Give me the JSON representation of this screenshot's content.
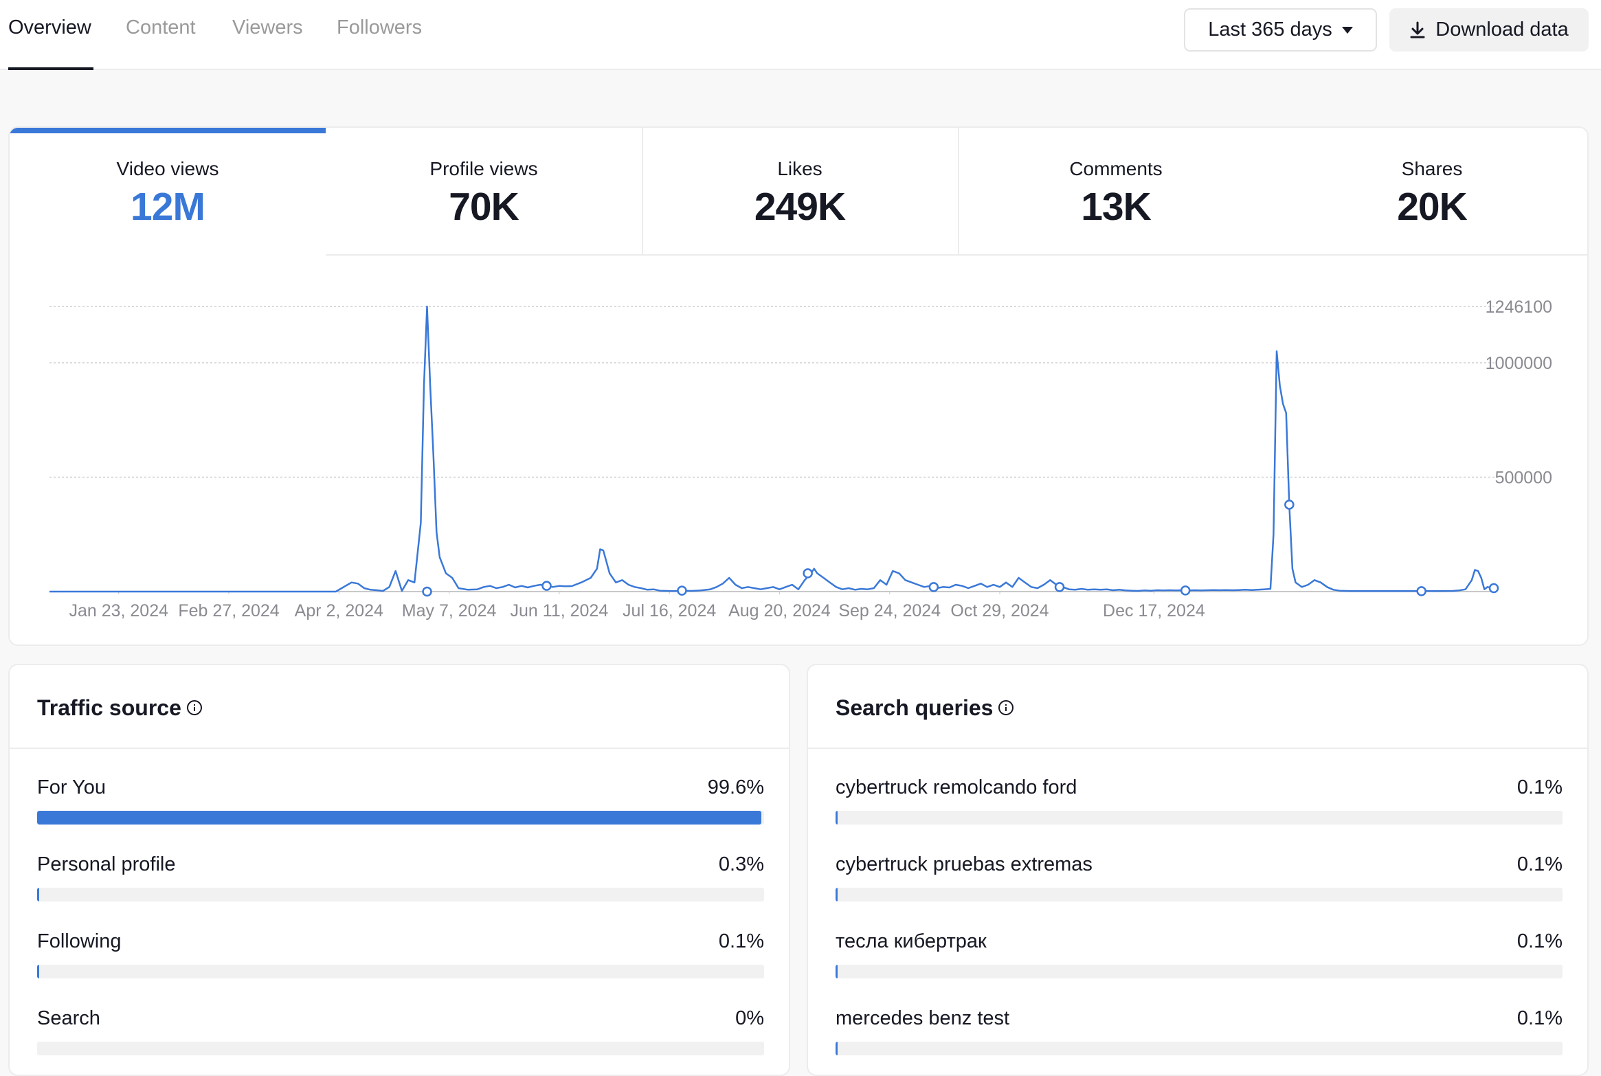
{
  "tabs": [
    {
      "label": "Overview",
      "active": true
    },
    {
      "label": "Content",
      "active": false
    },
    {
      "label": "Viewers",
      "active": false
    },
    {
      "label": "Followers",
      "active": false
    }
  ],
  "toolbar": {
    "range_label": "Last 365 days",
    "range_icon": "caret-down-icon",
    "download_label": "Download data",
    "download_icon": "download-icon"
  },
  "metrics": [
    {
      "label": "Video views",
      "value": "12M",
      "selected": true
    },
    {
      "label": "Profile views",
      "value": "70K",
      "selected": false
    },
    {
      "label": "Likes",
      "value": "249K",
      "selected": false
    },
    {
      "label": "Comments",
      "value": "13K",
      "selected": false
    },
    {
      "label": "Shares",
      "value": "20K",
      "selected": false
    }
  ],
  "colors": {
    "accent": "#3a78d8",
    "track": "#f1f1f2",
    "border": "#ececec"
  },
  "chart_data": {
    "type": "line",
    "series": [
      {
        "values": [
          [
            0,
            0
          ],
          [
            45,
            0
          ],
          [
            69,
            0
          ],
          [
            91,
            0
          ],
          [
            96,
            40000
          ],
          [
            98,
            35000
          ],
          [
            100,
            15000
          ],
          [
            102,
            8000
          ],
          [
            104,
            6000
          ],
          [
            106,
            3000
          ],
          [
            108,
            20000
          ],
          [
            110,
            90000
          ],
          [
            112,
            3000
          ],
          [
            114,
            50000
          ],
          [
            116,
            40000
          ],
          [
            118,
            300000
          ],
          [
            119,
            900000
          ],
          [
            120,
            1246100
          ],
          [
            121,
            900000
          ],
          [
            122,
            600000
          ],
          [
            123,
            260000
          ],
          [
            124,
            150000
          ],
          [
            126,
            80000
          ],
          [
            128,
            60000
          ],
          [
            130,
            15000
          ],
          [
            133,
            8000
          ],
          [
            136,
            10000
          ],
          [
            138,
            20000
          ],
          [
            140,
            25000
          ],
          [
            142,
            15000
          ],
          [
            144,
            20000
          ],
          [
            146,
            30000
          ],
          [
            148,
            18000
          ],
          [
            150,
            25000
          ],
          [
            152,
            18000
          ],
          [
            154,
            25000
          ],
          [
            156,
            30000
          ],
          [
            158,
            25000
          ],
          [
            160,
            20000
          ],
          [
            162,
            25000
          ],
          [
            164,
            23000
          ],
          [
            166,
            24000
          ],
          [
            169,
            40000
          ],
          [
            172,
            60000
          ],
          [
            174,
            100000
          ],
          [
            175,
            185000
          ],
          [
            176,
            180000
          ],
          [
            177,
            130000
          ],
          [
            178,
            80000
          ],
          [
            180,
            40000
          ],
          [
            182,
            50000
          ],
          [
            184,
            30000
          ],
          [
            186,
            20000
          ],
          [
            188,
            15000
          ],
          [
            190,
            8000
          ],
          [
            192,
            10000
          ],
          [
            194,
            4000
          ],
          [
            196,
            3000
          ],
          [
            198,
            2000
          ],
          [
            201,
            4000
          ],
          [
            204,
            3000
          ],
          [
            207,
            5000
          ],
          [
            210,
            10000
          ],
          [
            212,
            20000
          ],
          [
            214,
            35000
          ],
          [
            216,
            60000
          ],
          [
            218,
            30000
          ],
          [
            220,
            15000
          ],
          [
            222,
            20000
          ],
          [
            224,
            15000
          ],
          [
            226,
            10000
          ],
          [
            228,
            15000
          ],
          [
            230,
            20000
          ],
          [
            232,
            10000
          ],
          [
            234,
            20000
          ],
          [
            236,
            30000
          ],
          [
            238,
            10000
          ],
          [
            240,
            50000
          ],
          [
            242,
            80000
          ],
          [
            243,
            100000
          ],
          [
            244,
            80000
          ],
          [
            246,
            60000
          ],
          [
            248,
            40000
          ],
          [
            250,
            20000
          ],
          [
            252,
            10000
          ],
          [
            254,
            15000
          ],
          [
            256,
            8000
          ],
          [
            258,
            12000
          ],
          [
            260,
            10000
          ],
          [
            262,
            15000
          ],
          [
            264,
            50000
          ],
          [
            266,
            30000
          ],
          [
            268,
            90000
          ],
          [
            270,
            80000
          ],
          [
            272,
            50000
          ],
          [
            274,
            40000
          ],
          [
            276,
            30000
          ],
          [
            278,
            20000
          ],
          [
            280,
            25000
          ],
          [
            282,
            15000
          ],
          [
            284,
            20000
          ],
          [
            286,
            18000
          ],
          [
            288,
            30000
          ],
          [
            290,
            25000
          ],
          [
            292,
            15000
          ],
          [
            294,
            25000
          ],
          [
            296,
            35000
          ],
          [
            298,
            20000
          ],
          [
            300,
            30000
          ],
          [
            302,
            20000
          ],
          [
            304,
            40000
          ],
          [
            306,
            20000
          ],
          [
            308,
            60000
          ],
          [
            310,
            40000
          ],
          [
            312,
            20000
          ],
          [
            314,
            15000
          ],
          [
            316,
            30000
          ],
          [
            318,
            50000
          ],
          [
            320,
            30000
          ],
          [
            322,
            20000
          ],
          [
            324,
            10000
          ],
          [
            326,
            8000
          ],
          [
            328,
            12000
          ],
          [
            330,
            8000
          ],
          [
            332,
            10000
          ],
          [
            334,
            8000
          ],
          [
            336,
            10000
          ],
          [
            338,
            6000
          ],
          [
            340,
            8000
          ],
          [
            342,
            5000
          ],
          [
            344,
            4000
          ],
          [
            346,
            3000
          ],
          [
            348,
            5000
          ],
          [
            350,
            4000
          ],
          [
            352,
            6000
          ],
          [
            354,
            5000
          ],
          [
            356,
            6000
          ],
          [
            358,
            5000
          ],
          [
            360,
            6000
          ],
          [
            362,
            5000
          ],
          [
            364,
            6000
          ],
          [
            366,
            5000
          ],
          [
            368,
            6000
          ],
          [
            370,
            7000
          ],
          [
            372,
            6000
          ],
          [
            374,
            7000
          ],
          [
            376,
            6000
          ],
          [
            378,
            7000
          ],
          [
            380,
            8000
          ],
          [
            382,
            7000
          ],
          [
            384,
            8000
          ],
          [
            386,
            10000
          ],
          [
            388,
            12000
          ],
          [
            389,
            250000
          ],
          [
            390,
            1050000
          ],
          [
            391,
            900000
          ],
          [
            392,
            820000
          ],
          [
            393,
            780000
          ],
          [
            394,
            380000
          ],
          [
            395,
            100000
          ],
          [
            396,
            40000
          ],
          [
            398,
            20000
          ],
          [
            400,
            30000
          ],
          [
            402,
            50000
          ],
          [
            404,
            40000
          ],
          [
            406,
            20000
          ],
          [
            408,
            8000
          ],
          [
            410,
            4000
          ],
          [
            412,
            3000
          ],
          [
            414,
            2000
          ],
          [
            418,
            2000
          ],
          [
            422,
            2000
          ],
          [
            426,
            2000
          ],
          [
            430,
            2000
          ],
          [
            434,
            2000
          ],
          [
            438,
            2000
          ],
          [
            442,
            2000
          ],
          [
            446,
            3000
          ],
          [
            448,
            5000
          ],
          [
            450,
            10000
          ],
          [
            452,
            50000
          ],
          [
            453,
            95000
          ],
          [
            454,
            90000
          ],
          [
            455,
            60000
          ],
          [
            456,
            10000
          ],
          [
            457,
            20000
          ],
          [
            459,
            15000
          ]
        ],
        "markers": [
          [
            120,
            0
          ],
          [
            158,
            25000
          ],
          [
            201,
            4000
          ],
          [
            241,
            80000
          ],
          [
            281,
            20000
          ],
          [
            321,
            20000
          ],
          [
            361,
            5000
          ],
          [
            394,
            380000
          ],
          [
            436,
            2000
          ],
          [
            459,
            15000
          ]
        ]
      }
    ],
    "xticks": [
      "Jan 23, 2024",
      "Feb 27, 2024",
      "Apr 2, 2024",
      "May 7, 2024",
      "Jun 11, 2024",
      "Jul 16, 2024",
      "Aug 20, 2024",
      "Sep 24, 2024",
      "Oct 29, 2024",
      "Dec 17, 2024"
    ],
    "xtick_days": [
      22,
      57,
      92,
      127,
      162,
      197,
      232,
      267,
      302,
      351
    ],
    "yticks": [
      500000,
      1000000,
      1246100
    ],
    "ytick_labels": [
      "500000",
      "1000000",
      "1246100"
    ],
    "xlim": [
      0,
      459
    ],
    "ylim": [
      0,
      1246100
    ],
    "grid": true
  },
  "traffic_source": {
    "title": "Traffic source",
    "info_icon": "info-icon",
    "rows": [
      {
        "label": "For You",
        "value": "99.6%",
        "fraction": 0.996
      },
      {
        "label": "Personal profile",
        "value": "0.3%",
        "fraction": 0.003
      },
      {
        "label": "Following",
        "value": "0.1%",
        "fraction": 0.001
      },
      {
        "label": "Search",
        "value": "0%",
        "fraction": 0.0
      }
    ]
  },
  "search_queries": {
    "title": "Search queries",
    "info_icon": "info-icon",
    "rows": [
      {
        "label": "cybertruck remolcando ford",
        "value": "0.1%",
        "fraction": 0.001
      },
      {
        "label": "cybertruck pruebas extremas",
        "value": "0.1%",
        "fraction": 0.001
      },
      {
        "label": "тесла кибертрак",
        "value": "0.1%",
        "fraction": 0.001
      },
      {
        "label": "mercedes benz test",
        "value": "0.1%",
        "fraction": 0.001
      }
    ]
  }
}
